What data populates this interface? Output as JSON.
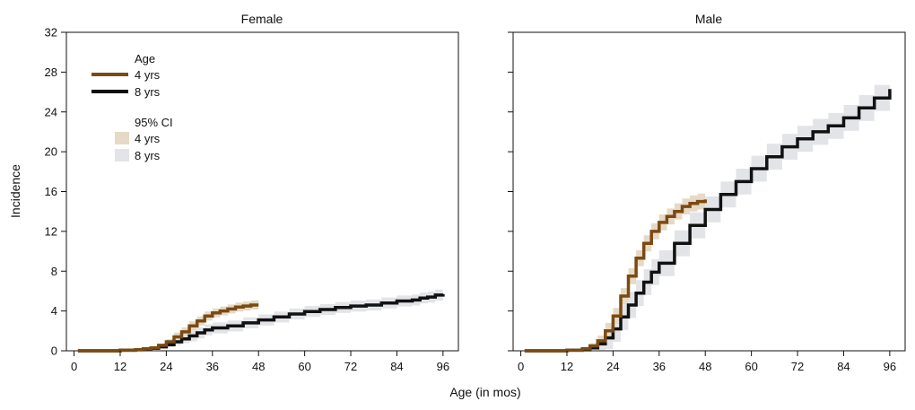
{
  "chart_data": {
    "type": "line",
    "xlabel": "Age (in mos)",
    "ylabel": "Incidence",
    "xlim": [
      -2,
      100
    ],
    "ylim": [
      0,
      32
    ],
    "xticks": [
      0,
      12,
      24,
      36,
      48,
      60,
      72,
      84,
      96
    ],
    "yticks": [
      0,
      4,
      8,
      12,
      16,
      20,
      24,
      28,
      32
    ],
    "grid": false,
    "legend": {
      "placement": "top-left",
      "line_title": "Age",
      "band_title": "95% CI",
      "entries": [
        "4 yrs",
        "8 yrs"
      ]
    },
    "colors": {
      "4 yrs": "#7a4a12",
      "8 yrs": "#111111",
      "ci_4 yrs": "#e6d9c6",
      "ci_8 yrs": "#e2e4e7"
    },
    "panels": [
      {
        "title": "Female",
        "series": [
          {
            "name": "4 yrs",
            "x": [
              1,
              12,
              16,
              18,
              20,
              22,
              24,
              26,
              28,
              30,
              32,
              34,
              36,
              38,
              40,
              42,
              44,
              46,
              48
            ],
            "y": [
              0,
              0.05,
              0.1,
              0.2,
              0.3,
              0.55,
              0.9,
              1.4,
              1.9,
              2.5,
              3.0,
              3.5,
              3.8,
              4.0,
              4.2,
              4.4,
              4.5,
              4.6,
              4.6
            ],
            "ci": 0.45
          },
          {
            "name": "8 yrs",
            "x": [
              1,
              12,
              16,
              18,
              20,
              22,
              24,
              26,
              28,
              30,
              32,
              34,
              36,
              40,
              44,
              48,
              52,
              56,
              60,
              64,
              68,
              72,
              76,
              80,
              84,
              88,
              90,
              92,
              94,
              96
            ],
            "y": [
              0,
              0.05,
              0.1,
              0.15,
              0.25,
              0.4,
              0.6,
              0.9,
              1.2,
              1.5,
              1.8,
              2.1,
              2.3,
              2.5,
              2.8,
              3.1,
              3.4,
              3.7,
              3.95,
              4.15,
              4.35,
              4.5,
              4.6,
              4.8,
              5.0,
              5.1,
              5.3,
              5.4,
              5.6,
              5.7
            ],
            "ci": 0.55
          }
        ]
      },
      {
        "title": "Male",
        "series": [
          {
            "name": "4 yrs",
            "x": [
              1,
              12,
              16,
              18,
              20,
              22,
              24,
              26,
              28,
              30,
              32,
              34,
              36,
              38,
              40,
              42,
              44,
              46,
              48
            ],
            "y": [
              0,
              0.05,
              0.2,
              0.5,
              1.0,
              2.0,
              3.5,
              5.5,
              7.5,
              9.3,
              10.8,
              12.0,
              12.9,
              13.5,
              14.0,
              14.5,
              14.8,
              15.0,
              15.2
            ],
            "ci": 0.8
          },
          {
            "name": "8 yrs",
            "x": [
              1,
              12,
              16,
              18,
              20,
              22,
              24,
              26,
              28,
              30,
              32,
              34,
              36,
              40,
              44,
              48,
              52,
              56,
              60,
              64,
              68,
              72,
              76,
              80,
              84,
              88,
              92,
              96
            ],
            "y": [
              0,
              0.05,
              0.1,
              0.3,
              0.7,
              1.3,
              2.2,
              3.4,
              4.6,
              5.8,
              6.9,
              7.9,
              8.8,
              10.8,
              12.6,
              14.2,
              15.7,
              17.0,
              18.3,
              19.5,
              20.5,
              21.3,
              22.0,
              22.6,
              23.4,
              24.4,
              25.4,
              26.3
            ],
            "ci": 1.3
          }
        ]
      }
    ]
  }
}
